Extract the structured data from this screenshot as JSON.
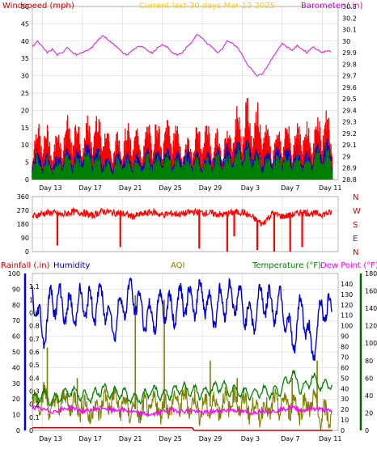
{
  "header": {
    "left_label": "Windspeed (mph)",
    "center_label": "Current last 30 days Mar 12 2025",
    "right_label": "Barometer (.in)"
  },
  "x_axis": {
    "tick_labels": [
      "Day 13",
      "Day 17",
      "Day 21",
      "Day 25",
      "Day 29",
      "Day 3",
      "Day 7",
      "Day 11"
    ]
  },
  "compass": [
    "N",
    "W",
    "S",
    "E",
    "N"
  ],
  "bottom_header": {
    "rainfall_label": "Rainfall (.in)",
    "humidity_label": "Humidity",
    "aqi_label": "AQI",
    "temperature_label": "Temperature (°F)",
    "dewpoint_label": "Dew Point (°F)"
  },
  "colors": {
    "windspeed": "#ff0000",
    "wind_avg": "#0000cc",
    "wind_gust": "#008000",
    "barometer": "#dd33dd",
    "title": "#ffcc00",
    "direction": "#ff0000",
    "humidity": "#0000dd",
    "temperature": "#008000",
    "dewpoint": "#ff00ff",
    "aqi": "#808000",
    "rainfall": "#cc0000",
    "grid": "#d0d0d0"
  },
  "chart_data": [
    {
      "type": "line",
      "name": "wind-and-barometer",
      "left_axis": {
        "label": "Windspeed (mph)",
        "ylim": [
          0,
          50
        ],
        "ticks": [
          0,
          5,
          10,
          15,
          20,
          25,
          30,
          35,
          40,
          45,
          50
        ]
      },
      "right_axis": {
        "label": "Barometer (.in)",
        "ylim": [
          28.8,
          30.3
        ],
        "ticks": [
          "28.8",
          "28.9",
          "29",
          "29.1",
          "29.2",
          "29.3",
          "29.4",
          "29.5",
          "29.6",
          "29.7",
          "29.8",
          "29.9",
          "30",
          "30.1",
          "30.2",
          "30.3"
        ]
      },
      "x": {
        "type": "days",
        "range": [
          0,
          30.6
        ],
        "tick_positions": [
          1,
          5,
          9,
          13,
          17,
          21,
          25,
          29
        ]
      },
      "series_baro": [
        [
          0,
          29.95
        ],
        [
          0.5,
          30.0
        ],
        [
          1,
          29.95
        ],
        [
          1.5,
          29.9
        ],
        [
          2,
          29.93
        ],
        [
          2.5,
          29.88
        ],
        [
          3,
          29.9
        ],
        [
          3.5,
          29.95
        ],
        [
          4,
          29.9
        ],
        [
          4.5,
          29.88
        ],
        [
          5,
          29.9
        ],
        [
          5.5,
          29.92
        ],
        [
          6,
          29.95
        ],
        [
          6.5,
          30.0
        ],
        [
          7,
          30.05
        ],
        [
          7.5,
          30.02
        ],
        [
          8,
          29.98
        ],
        [
          8.5,
          29.95
        ],
        [
          9,
          29.9
        ],
        [
          9.5,
          29.88
        ],
        [
          10,
          29.92
        ],
        [
          10.5,
          29.95
        ],
        [
          11,
          29.95
        ],
        [
          11.5,
          29.92
        ],
        [
          12,
          29.9
        ],
        [
          12.5,
          29.94
        ],
        [
          13,
          29.97
        ],
        [
          13.5,
          29.95
        ],
        [
          14,
          29.9
        ],
        [
          14.5,
          29.88
        ],
        [
          15,
          29.9
        ],
        [
          15.5,
          29.95
        ],
        [
          16,
          30.0
        ],
        [
          16.5,
          30.06
        ],
        [
          17,
          30.03
        ],
        [
          17.5,
          29.98
        ],
        [
          18,
          29.95
        ],
        [
          18.5,
          29.9
        ],
        [
          19,
          29.93
        ],
        [
          19.5,
          30.0
        ],
        [
          20,
          29.98
        ],
        [
          20.5,
          29.95
        ],
        [
          21,
          29.88
        ],
        [
          21.5,
          29.8
        ],
        [
          22,
          29.75
        ],
        [
          22.5,
          29.7
        ],
        [
          23,
          29.72
        ],
        [
          23.5,
          29.78
        ],
        [
          24,
          29.85
        ],
        [
          24.5,
          29.92
        ],
        [
          25,
          29.98
        ],
        [
          25.5,
          29.95
        ],
        [
          26,
          29.92
        ],
        [
          26.5,
          29.96
        ],
        [
          27,
          29.93
        ],
        [
          27.5,
          29.9
        ],
        [
          28,
          29.95
        ],
        [
          28.5,
          29.93
        ],
        [
          29,
          29.9
        ],
        [
          29.5,
          29.92
        ],
        [
          30,
          29.9
        ]
      ],
      "series_windspeed_envelope": [
        [
          0,
          14
        ],
        [
          1,
          17
        ],
        [
          2,
          12
        ],
        [
          3,
          16
        ],
        [
          4,
          18
        ],
        [
          5,
          15
        ],
        [
          6,
          19
        ],
        [
          7,
          20
        ],
        [
          8,
          11
        ],
        [
          9,
          15
        ],
        [
          10,
          16
        ],
        [
          11,
          13
        ],
        [
          12,
          18
        ],
        [
          13,
          15
        ],
        [
          14,
          20
        ],
        [
          15,
          11
        ],
        [
          16,
          14
        ],
        [
          17,
          16
        ],
        [
          18,
          15
        ],
        [
          19,
          12
        ],
        [
          20,
          19
        ],
        [
          21,
          21
        ],
        [
          22,
          23
        ],
        [
          23,
          19
        ],
        [
          24,
          13
        ],
        [
          25,
          17
        ],
        [
          26,
          15
        ],
        [
          27,
          18
        ],
        [
          28,
          15
        ],
        [
          29,
          22
        ],
        [
          30,
          17
        ]
      ],
      "series_avg_envelope": [
        [
          0,
          9
        ],
        [
          1,
          8
        ],
        [
          2,
          6
        ],
        [
          3,
          9
        ],
        [
          4,
          8
        ],
        [
          5,
          10
        ],
        [
          6,
          11
        ],
        [
          7,
          8
        ],
        [
          8,
          6
        ],
        [
          9,
          9
        ],
        [
          10,
          7
        ],
        [
          11,
          8
        ],
        [
          12,
          9
        ],
        [
          13,
          10
        ],
        [
          14,
          8
        ],
        [
          15,
          9
        ],
        [
          16,
          8
        ],
        [
          17,
          7
        ],
        [
          18,
          8
        ],
        [
          19,
          9
        ],
        [
          20,
          10
        ],
        [
          21,
          12
        ],
        [
          22,
          11
        ],
        [
          23,
          8
        ],
        [
          24,
          9
        ],
        [
          25,
          10
        ],
        [
          26,
          9
        ],
        [
          27,
          9
        ],
        [
          28,
          8
        ],
        [
          29,
          12
        ],
        [
          30,
          11
        ]
      ]
    },
    {
      "type": "line",
      "name": "wind-direction",
      "y_axis": {
        "ylim": [
          0,
          360
        ],
        "ticks": [
          0,
          90,
          180,
          270,
          360
        ]
      },
      "series_direction": [
        [
          0,
          230
        ],
        [
          1,
          250
        ],
        [
          2,
          255
        ],
        [
          3,
          240
        ],
        [
          4,
          260
        ],
        [
          5,
          255
        ],
        [
          6,
          235
        ],
        [
          7,
          265
        ],
        [
          8,
          255
        ],
        [
          9,
          250
        ],
        [
          10,
          230
        ],
        [
          11,
          245
        ],
        [
          12,
          260
        ],
        [
          13,
          240
        ],
        [
          14,
          250
        ],
        [
          15,
          245
        ],
        [
          16,
          260
        ],
        [
          17,
          255
        ],
        [
          18,
          250
        ],
        [
          19,
          240
        ],
        [
          20,
          255
        ],
        [
          21,
          260
        ],
        [
          22,
          225
        ],
        [
          23,
          180
        ],
        [
          24,
          250
        ],
        [
          25,
          230
        ],
        [
          26,
          240
        ],
        [
          27,
          260
        ],
        [
          28,
          250
        ],
        [
          29,
          245
        ],
        [
          30,
          255
        ]
      ],
      "dips": [
        [
          2.5,
          40
        ],
        [
          8.8,
          30
        ],
        [
          16.7,
          20
        ],
        [
          19.5,
          0
        ],
        [
          20.2,
          100
        ],
        [
          22.5,
          10
        ],
        [
          24.2,
          0
        ],
        [
          25.8,
          0
        ],
        [
          27.0,
          30
        ]
      ]
    },
    {
      "type": "line",
      "name": "humidity-temperature-rain-aqi",
      "left_axis": {
        "label": "Rainfall (.in)",
        "ylim": [
          0,
          1.2
        ],
        "ticks": [
          "0",
          "0.1",
          "0.2",
          "0.3",
          "0.4",
          "0.5",
          "0.6",
          "0.7",
          "0.8",
          "0.9",
          "1",
          "1.1"
        ]
      },
      "left_axis_2": {
        "label": "Humidity",
        "ylim": [
          0,
          100
        ],
        "ticks": [
          0,
          10,
          20,
          30,
          40,
          50,
          60,
          70,
          80,
          90,
          100
        ]
      },
      "right_axis": {
        "label": "Temperature (°F)",
        "ylim": [
          0,
          150
        ],
        "ticks": [
          0,
          10,
          20,
          30,
          40,
          50,
          60,
          70,
          80,
          90,
          100,
          110,
          120,
          130,
          140
        ]
      },
      "right_axis_2": {
        "label": "AQI",
        "ylim": [
          0,
          180
        ],
        "ticks": [
          0,
          20,
          40,
          60,
          80,
          100,
          120,
          140,
          160,
          180
        ]
      },
      "series_humidity": [
        [
          0,
          90
        ],
        [
          1,
          60
        ],
        [
          2,
          85
        ],
        [
          3,
          80
        ],
        [
          4,
          75
        ],
        [
          5,
          82
        ],
        [
          6,
          78
        ],
        [
          7,
          85
        ],
        [
          8,
          65
        ],
        [
          9,
          80
        ],
        [
          10,
          88
        ],
        [
          11,
          75
        ],
        [
          12,
          70
        ],
        [
          13,
          82
        ],
        [
          14,
          75
        ],
        [
          15,
          85
        ],
        [
          16,
          80
        ],
        [
          17,
          88
        ],
        [
          18,
          75
        ],
        [
          19,
          82
        ],
        [
          20,
          85
        ],
        [
          21,
          80
        ],
        [
          22,
          70
        ],
        [
          23,
          86
        ],
        [
          24,
          78
        ],
        [
          25,
          82
        ],
        [
          26,
          55
        ],
        [
          27,
          80
        ],
        [
          28,
          48
        ],
        [
          29,
          80
        ],
        [
          30,
          75
        ]
      ],
      "series_temperature": [
        [
          0,
          30
        ],
        [
          1,
          35
        ],
        [
          2,
          28
        ],
        [
          3,
          35
        ],
        [
          4,
          38
        ],
        [
          5,
          33
        ],
        [
          6,
          32
        ],
        [
          7,
          40
        ],
        [
          8,
          35
        ],
        [
          9,
          36
        ],
        [
          10,
          30
        ],
        [
          11,
          32
        ],
        [
          12,
          38
        ],
        [
          13,
          34
        ],
        [
          14,
          36
        ],
        [
          15,
          40
        ],
        [
          16,
          38
        ],
        [
          17,
          35
        ],
        [
          18,
          40
        ],
        [
          19,
          42
        ],
        [
          20,
          38
        ],
        [
          21,
          36
        ],
        [
          22,
          35
        ],
        [
          23,
          38
        ],
        [
          24,
          36
        ],
        [
          25,
          40
        ],
        [
          26,
          55
        ],
        [
          27,
          38
        ],
        [
          28,
          50
        ],
        [
          29,
          42
        ],
        [
          30,
          45
        ]
      ],
      "series_dewpoint": [
        [
          0,
          22
        ],
        [
          1,
          20
        ],
        [
          2,
          18
        ],
        [
          3,
          20
        ],
        [
          4,
          22
        ],
        [
          5,
          18
        ],
        [
          6,
          20
        ],
        [
          7,
          22
        ],
        [
          8,
          19
        ],
        [
          9,
          20
        ],
        [
          10,
          18
        ],
        [
          11,
          16
        ],
        [
          12,
          15
        ],
        [
          13,
          18
        ],
        [
          14,
          20
        ],
        [
          15,
          18
        ],
        [
          16,
          19
        ],
        [
          17,
          17
        ],
        [
          18,
          18
        ],
        [
          19,
          19
        ],
        [
          20,
          20
        ],
        [
          21,
          18
        ],
        [
          22,
          17
        ],
        [
          23,
          19
        ],
        [
          24,
          18
        ],
        [
          25,
          20
        ],
        [
          26,
          22
        ],
        [
          27,
          19
        ],
        [
          28,
          21
        ],
        [
          29,
          20
        ],
        [
          30,
          18
        ]
      ],
      "series_aqi": [
        [
          0,
          30
        ],
        [
          1,
          40
        ],
        [
          2,
          25
        ],
        [
          3,
          35
        ],
        [
          4,
          30
        ],
        [
          5,
          28
        ],
        [
          6,
          20
        ],
        [
          7,
          30
        ],
        [
          8,
          35
        ],
        [
          9,
          28
        ],
        [
          10,
          25
        ],
        [
          11,
          22
        ],
        [
          12,
          30
        ],
        [
          13,
          25
        ],
        [
          14,
          30
        ],
        [
          15,
          35
        ],
        [
          16,
          30
        ],
        [
          17,
          25
        ],
        [
          18,
          28
        ],
        [
          19,
          30
        ],
        [
          20,
          35
        ],
        [
          21,
          30
        ],
        [
          22,
          25
        ],
        [
          23,
          22
        ],
        [
          24,
          28
        ],
        [
          25,
          30
        ],
        [
          26,
          30
        ],
        [
          27,
          25
        ],
        [
          28,
          35
        ],
        [
          29,
          15
        ],
        [
          30,
          20
        ]
      ],
      "aqi_spikes": [
        [
          1.5,
          95
        ],
        [
          4.5,
          60
        ],
        [
          10.3,
          155
        ],
        [
          13.2,
          150
        ],
        [
          17.8,
          80
        ],
        [
          20.5,
          60
        ],
        [
          26.0,
          60
        ],
        [
          28.5,
          80
        ]
      ],
      "series_rainfall": [
        [
          0,
          0.02
        ],
        [
          16,
          0.02
        ],
        [
          16.2,
          0.0
        ],
        [
          30,
          0.0
        ]
      ]
    }
  ]
}
